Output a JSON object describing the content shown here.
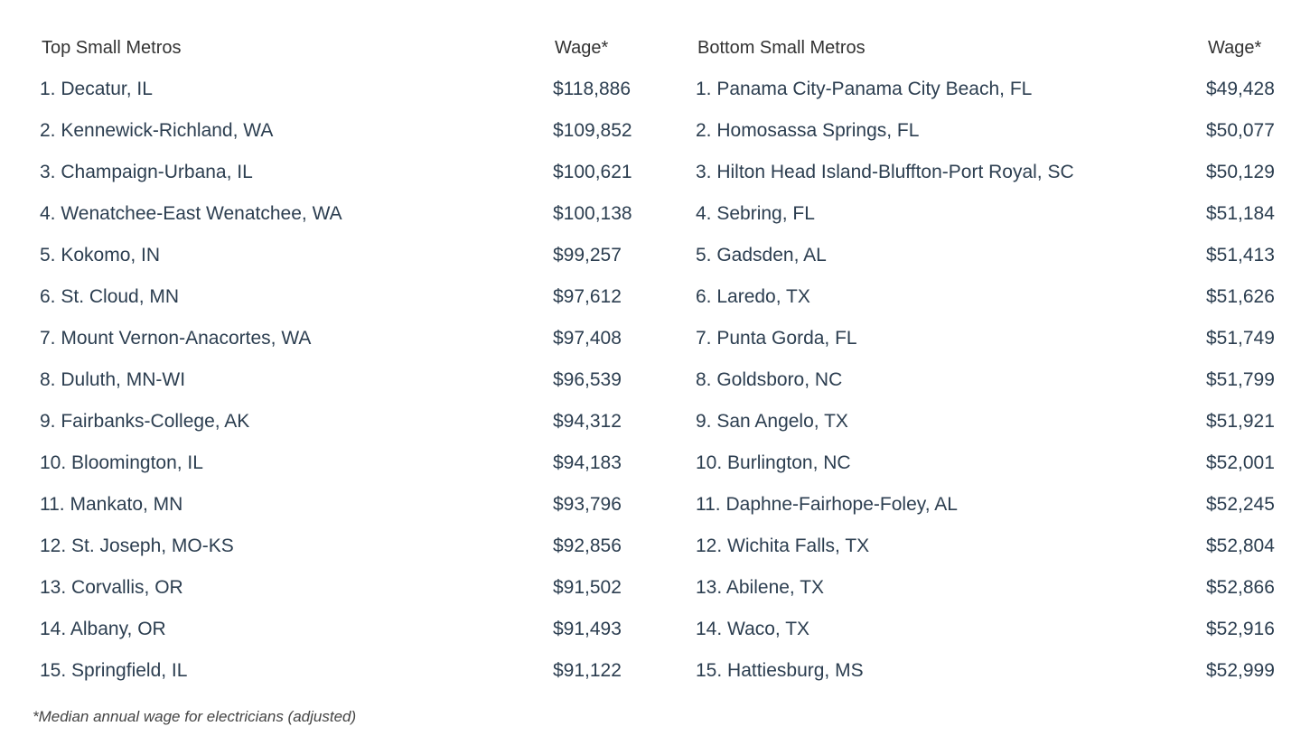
{
  "left": {
    "header_name": "Top Small Metros",
    "header_wage": "Wage*",
    "rows": [
      {
        "name": "1. Decatur, IL",
        "wage": "$118,886"
      },
      {
        "name": "2. Kennewick-Richland, WA",
        "wage": "$109,852"
      },
      {
        "name": "3. Champaign-Urbana, IL",
        "wage": "$100,621"
      },
      {
        "name": "4. Wenatchee-East Wenatchee, WA",
        "wage": "$100,138"
      },
      {
        "name": "5. Kokomo, IN",
        "wage": "$99,257"
      },
      {
        "name": "6. St. Cloud, MN",
        "wage": "$97,612"
      },
      {
        "name": "7. Mount Vernon-Anacortes, WA",
        "wage": "$97,408"
      },
      {
        "name": "8. Duluth, MN-WI",
        "wage": "$96,539"
      },
      {
        "name": "9. Fairbanks-College, AK",
        "wage": "$94,312"
      },
      {
        "name": "10. Bloomington, IL",
        "wage": "$94,183"
      },
      {
        "name": "11. Mankato, MN",
        "wage": "$93,796"
      },
      {
        "name": "12. St. Joseph, MO-KS",
        "wage": "$92,856"
      },
      {
        "name": "13. Corvallis, OR",
        "wage": "$91,502"
      },
      {
        "name": "14. Albany, OR",
        "wage": "$91,493"
      },
      {
        "name": "15. Springfield, IL",
        "wage": "$91,122"
      }
    ]
  },
  "right": {
    "header_name": "Bottom Small Metros",
    "header_wage": "Wage*",
    "rows": [
      {
        "name": "1. Panama City-Panama City Beach, FL",
        "wage": "$49,428"
      },
      {
        "name": "2. Homosassa Springs, FL",
        "wage": "$50,077"
      },
      {
        "name": "3. Hilton Head Island-Bluffton-Port Royal, SC",
        "wage": "$50,129"
      },
      {
        "name": "4. Sebring, FL",
        "wage": "$51,184"
      },
      {
        "name": "5. Gadsden, AL",
        "wage": "$51,413"
      },
      {
        "name": "6. Laredo, TX",
        "wage": "$51,626"
      },
      {
        "name": "7. Punta Gorda, FL",
        "wage": "$51,749"
      },
      {
        "name": "8. Goldsboro, NC",
        "wage": "$51,799"
      },
      {
        "name": "9. San Angelo, TX",
        "wage": "$51,921"
      },
      {
        "name": "10. Burlington, NC",
        "wage": "$52,001"
      },
      {
        "name": "11. Daphne-Fairhope-Foley, AL",
        "wage": "$52,245"
      },
      {
        "name": "12. Wichita Falls, TX",
        "wage": "$52,804"
      },
      {
        "name": "13. Abilene, TX",
        "wage": "$52,866"
      },
      {
        "name": "14. Waco, TX",
        "wage": "$52,916"
      },
      {
        "name": "15. Hattiesburg, MS",
        "wage": "$52,999"
      }
    ]
  },
  "footnote": "*Median annual wage for electricians (adjusted)"
}
